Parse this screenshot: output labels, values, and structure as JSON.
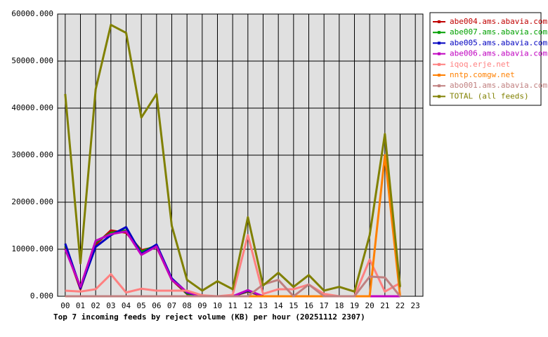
{
  "chart_data": {
    "type": "line",
    "title": "Top 7 incoming feeds by reject volume (KB) per hour (20251112 2307)",
    "categories": [
      "00",
      "01",
      "02",
      "03",
      "04",
      "05",
      "06",
      "07",
      "08",
      "09",
      "10",
      "11",
      "12",
      "13",
      "14",
      "15",
      "16",
      "17",
      "18",
      "19",
      "20",
      "21",
      "22",
      "23"
    ],
    "series": [
      {
        "name": "abe004.ams.abavia.com",
        "color": "#c00000",
        "values": [
          10500,
          1500,
          11000,
          14000,
          13500,
          9800,
          10500,
          3500,
          500,
          0,
          0,
          0,
          1000,
          0,
          0,
          0,
          0,
          0,
          0,
          0,
          0,
          0,
          0,
          null
        ]
      },
      {
        "name": "abe007.ams.abavia.com",
        "color": "#00a000",
        "values": [
          10800,
          1800,
          11500,
          13500,
          14000,
          9500,
          10800,
          3700,
          600,
          0,
          0,
          0,
          1100,
          0,
          0,
          0,
          0,
          0,
          0,
          0,
          0,
          0,
          0,
          null
        ]
      },
      {
        "name": "abe005.ams.abavia.com",
        "color": "#0000c0",
        "values": [
          11200,
          1700,
          10500,
          13000,
          14700,
          9000,
          11000,
          3800,
          800,
          0,
          0,
          0,
          1200,
          0,
          0,
          0,
          0,
          0,
          0,
          0,
          0,
          0,
          0,
          null
        ]
      },
      {
        "name": "abe006.ams.abavia.com",
        "color": "#c000c0",
        "values": [
          10000,
          2000,
          11800,
          13200,
          13800,
          8800,
          10600,
          3500,
          900,
          0,
          0,
          0,
          1300,
          0,
          0,
          0,
          0,
          0,
          0,
          0,
          0,
          0,
          0,
          null
        ]
      },
      {
        "name": "iqoq.erje.net",
        "color": "#ff8080",
        "values": [
          1200,
          1000,
          1500,
          4700,
          800,
          1600,
          1200,
          1200,
          1200,
          200,
          0,
          300,
          13000,
          500,
          1500,
          1500,
          2500,
          500,
          0,
          0,
          7800,
          1000,
          2800,
          null
        ]
      },
      {
        "name": "nntp.comgw.net",
        "color": "#ff8000",
        "values": [
          0,
          0,
          0,
          0,
          0,
          0,
          0,
          0,
          0,
          0,
          0,
          0,
          0,
          0,
          0,
          0,
          0,
          0,
          0,
          0,
          0,
          30000,
          0,
          null
        ]
      },
      {
        "name": "abo001.ams.abavia.com",
        "color": "#c08080",
        "values": [
          0,
          0,
          0,
          0,
          0,
          0,
          0,
          0,
          0,
          0,
          0,
          0,
          0,
          2500,
          3500,
          0,
          2500,
          0,
          0,
          0,
          4200,
          4000,
          0,
          null
        ]
      },
      {
        "name": "TOTAL (all feeds)",
        "color": "#808000",
        "values": [
          43000,
          7000,
          44000,
          57700,
          56000,
          38000,
          43000,
          15000,
          3500,
          1200,
          3200,
          1500,
          16800,
          2300,
          5000,
          2000,
          4500,
          1200,
          2000,
          1000,
          13000,
          34500,
          2000,
          null
        ]
      }
    ],
    "ylim": [
      0,
      60000
    ],
    "yticks": [
      {
        "value": 0,
        "label": "0.000"
      },
      {
        "value": 10000,
        "label": "10000.000"
      },
      {
        "value": 20000,
        "label": "20000.000"
      },
      {
        "value": 30000,
        "label": "30000.000"
      },
      {
        "value": 40000,
        "label": "40000.000"
      },
      {
        "value": 50000,
        "label": "50000.000"
      },
      {
        "value": 60000,
        "label": "60000.000"
      }
    ],
    "grid": true,
    "legend": "top-right"
  }
}
